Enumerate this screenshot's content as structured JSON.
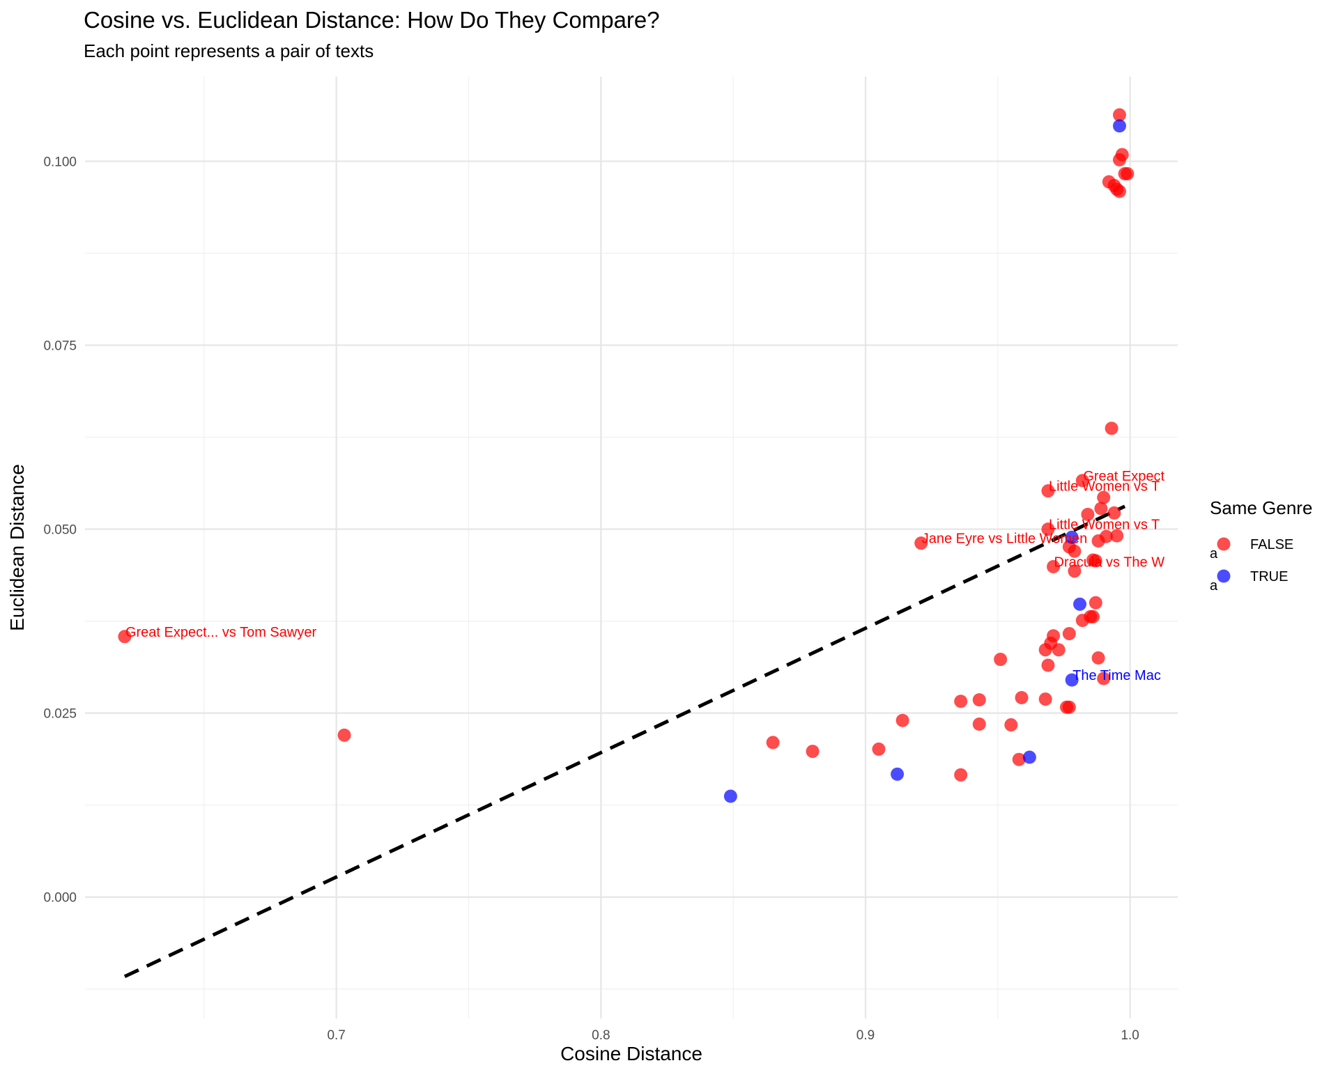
{
  "chart_data": {
    "type": "scatter",
    "title": "Cosine vs. Euclidean Distance: How Do They Compare?",
    "subtitle": "Each point represents a pair of texts",
    "xlabel": "Cosine Distance",
    "ylabel": "Euclidean Distance",
    "xlim": [
      0.605,
      1.018
    ],
    "ylim": [
      -0.0165,
      0.1115
    ],
    "x_ticks": [
      0.7,
      0.8,
      0.9,
      1.0
    ],
    "x_tick_labels": [
      "0.7",
      "0.8",
      "0.9",
      "1.0"
    ],
    "y_ticks": [
      0.0,
      0.025,
      0.05,
      0.075,
      0.1
    ],
    "y_tick_labels": [
      "0.000",
      "0.025",
      "0.050",
      "0.075",
      "0.100"
    ],
    "grid": true,
    "legend": {
      "title": "Same Genre",
      "placement": "right",
      "entries": [
        {
          "label": "FALSE",
          "color": "#ff0000"
        },
        {
          "label": "TRUE",
          "color": "#0000ff"
        }
      ]
    },
    "reference_line": {
      "style": "dashed",
      "color": "#000000",
      "x": [
        0.62,
        0.998
      ],
      "y": [
        -0.0108,
        0.0531
      ]
    },
    "series": [
      {
        "name": "FALSE",
        "color": "#ff0000",
        "points": [
          {
            "x": 0.62,
            "y": 0.0354,
            "label": "Great Expect... vs Tom Sawyer"
          },
          {
            "x": 0.703,
            "y": 0.022
          },
          {
            "x": 0.865,
            "y": 0.021
          },
          {
            "x": 0.88,
            "y": 0.0198
          },
          {
            "x": 0.905,
            "y": 0.0201
          },
          {
            "x": 0.914,
            "y": 0.024
          },
          {
            "x": 0.921,
            "y": 0.0481,
            "label": "Jane Eyre vs Little Women"
          },
          {
            "x": 0.936,
            "y": 0.0166
          },
          {
            "x": 0.936,
            "y": 0.0266
          },
          {
            "x": 0.943,
            "y": 0.0268
          },
          {
            "x": 0.943,
            "y": 0.0235
          },
          {
            "x": 0.951,
            "y": 0.0323
          },
          {
            "x": 0.955,
            "y": 0.0234
          },
          {
            "x": 0.958,
            "y": 0.0187
          },
          {
            "x": 0.959,
            "y": 0.0271
          },
          {
            "x": 0.968,
            "y": 0.0269
          },
          {
            "x": 0.968,
            "y": 0.0336
          },
          {
            "x": 0.969,
            "y": 0.0315
          },
          {
            "x": 0.969,
            "y": 0.0552,
            "label": "Little Women vs T"
          },
          {
            "x": 0.969,
            "y": 0.05,
            "label": "Little Women vs T"
          },
          {
            "x": 0.97,
            "y": 0.0345
          },
          {
            "x": 0.971,
            "y": 0.0449,
            "label": "Dracula vs The W"
          },
          {
            "x": 0.971,
            "y": 0.0355
          },
          {
            "x": 0.973,
            "y": 0.0336
          },
          {
            "x": 0.976,
            "y": 0.0258
          },
          {
            "x": 0.977,
            "y": 0.0258
          },
          {
            "x": 0.977,
            "y": 0.0358
          },
          {
            "x": 0.977,
            "y": 0.0476
          },
          {
            "x": 0.979,
            "y": 0.0443
          },
          {
            "x": 0.979,
            "y": 0.047
          },
          {
            "x": 0.982,
            "y": 0.0566,
            "label": "Great Expect"
          },
          {
            "x": 0.982,
            "y": 0.0376
          },
          {
            "x": 0.984,
            "y": 0.052
          },
          {
            "x": 0.985,
            "y": 0.0381
          },
          {
            "x": 0.986,
            "y": 0.0381
          },
          {
            "x": 0.986,
            "y": 0.0458
          },
          {
            "x": 0.987,
            "y": 0.0457
          },
          {
            "x": 0.987,
            "y": 0.04
          },
          {
            "x": 0.988,
            "y": 0.0325
          },
          {
            "x": 0.988,
            "y": 0.0484
          },
          {
            "x": 0.989,
            "y": 0.0528
          },
          {
            "x": 0.99,
            "y": 0.0543
          },
          {
            "x": 0.99,
            "y": 0.0297
          },
          {
            "x": 0.991,
            "y": 0.049
          },
          {
            "x": 0.992,
            "y": 0.0972
          },
          {
            "x": 0.993,
            "y": 0.0637
          },
          {
            "x": 0.994,
            "y": 0.0522
          },
          {
            "x": 0.994,
            "y": 0.0967
          },
          {
            "x": 0.995,
            "y": 0.0962
          },
          {
            "x": 0.995,
            "y": 0.0491
          },
          {
            "x": 0.996,
            "y": 0.1002
          },
          {
            "x": 0.996,
            "y": 0.0959
          },
          {
            "x": 0.996,
            "y": 0.1063
          },
          {
            "x": 0.997,
            "y": 0.1009
          },
          {
            "x": 0.998,
            "y": 0.0983
          },
          {
            "x": 0.999,
            "y": 0.0983
          }
        ]
      },
      {
        "name": "TRUE",
        "color": "#0000ff",
        "points": [
          {
            "x": 0.849,
            "y": 0.0137
          },
          {
            "x": 0.912,
            "y": 0.0167
          },
          {
            "x": 0.962,
            "y": 0.019
          },
          {
            "x": 0.978,
            "y": 0.0295,
            "label": "The Time Mac"
          },
          {
            "x": 0.978,
            "y": 0.0489
          },
          {
            "x": 0.981,
            "y": 0.0398
          },
          {
            "x": 0.996,
            "y": 0.1048
          }
        ]
      }
    ]
  }
}
